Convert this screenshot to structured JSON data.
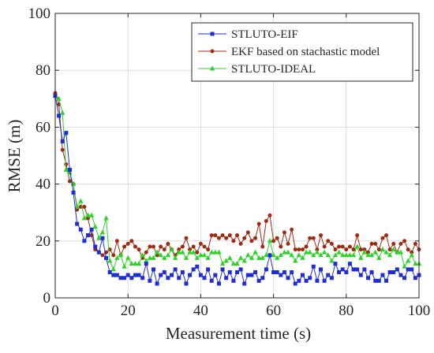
{
  "chart_data": {
    "type": "line",
    "title": "",
    "xlabel": "Measurement time (s)",
    "ylabel": "RMSE (m)",
    "xlim": [
      0,
      100
    ],
    "ylim": [
      0,
      100
    ],
    "xticks": [
      "0",
      "20",
      "40",
      "60",
      "80",
      "100"
    ],
    "yticks": [
      "0",
      "20",
      "40",
      "60",
      "80",
      "100"
    ],
    "grid": true,
    "legend_position": "top-right",
    "series": [
      {
        "name": "STLUTO-EIF",
        "color": "#1f2dd6",
        "marker": "square",
        "x": [
          0,
          1,
          2,
          3,
          4,
          5,
          6,
          7,
          8,
          9,
          10,
          11,
          12,
          13,
          14,
          15,
          16,
          17,
          18,
          19,
          20,
          21,
          22,
          23,
          24,
          25,
          26,
          27,
          28,
          29,
          30,
          31,
          32,
          33,
          34,
          35,
          36,
          37,
          38,
          39,
          40,
          41,
          42,
          43,
          44,
          45,
          46,
          47,
          48,
          49,
          50,
          51,
          52,
          53,
          54,
          55,
          56,
          57,
          58,
          59,
          60,
          61,
          62,
          63,
          64,
          65,
          66,
          67,
          68,
          69,
          70,
          71,
          72,
          73,
          74,
          75,
          76,
          77,
          78,
          79,
          80,
          81,
          82,
          83,
          84,
          85,
          86,
          87,
          88,
          89,
          90,
          91,
          92,
          93,
          94,
          95,
          96,
          97,
          98,
          99,
          100
        ],
        "y": [
          71,
          64,
          55,
          58,
          45,
          37,
          26,
          24,
          20,
          22,
          24,
          18,
          16,
          21,
          14,
          9,
          8,
          8,
          7,
          7,
          8,
          7,
          8,
          8,
          7,
          12,
          6,
          10,
          5,
          8,
          9,
          7,
          8,
          10,
          7,
          9,
          5,
          8,
          10,
          11,
          8,
          7,
          10,
          6,
          8,
          5,
          10,
          7,
          9,
          6,
          9,
          10,
          5,
          8,
          8,
          9,
          6,
          7,
          10,
          15,
          9,
          9,
          8,
          9,
          7,
          9,
          5,
          6,
          8,
          6,
          7,
          11,
          6,
          10,
          6,
          8,
          7,
          12,
          9,
          10,
          9,
          12,
          10,
          10,
          8,
          10,
          7,
          9,
          6,
          6,
          8,
          6,
          9,
          9,
          10,
          8,
          7,
          10,
          10,
          7,
          8
        ]
      },
      {
        "name": "EKF based on stachastic model",
        "color": "#9e2a12",
        "marker": "circle",
        "x": [
          0,
          1,
          2,
          3,
          4,
          5,
          6,
          7,
          8,
          9,
          10,
          11,
          12,
          13,
          14,
          15,
          16,
          17,
          18,
          19,
          20,
          21,
          22,
          23,
          24,
          25,
          26,
          27,
          28,
          29,
          30,
          31,
          32,
          33,
          34,
          35,
          36,
          37,
          38,
          39,
          40,
          41,
          42,
          43,
          44,
          45,
          46,
          47,
          48,
          49,
          50,
          51,
          52,
          53,
          54,
          55,
          56,
          57,
          58,
          59,
          60,
          61,
          62,
          63,
          64,
          65,
          66,
          67,
          68,
          69,
          70,
          71,
          72,
          73,
          74,
          75,
          76,
          77,
          78,
          79,
          80,
          81,
          82,
          83,
          84,
          85,
          86,
          87,
          88,
          89,
          90,
          91,
          92,
          93,
          94,
          95,
          96,
          97,
          98,
          99,
          100
        ],
        "y": [
          72,
          68,
          52,
          47,
          41,
          40,
          31,
          32,
          32,
          28,
          22,
          17,
          16,
          15,
          16,
          17,
          15,
          20,
          15,
          18,
          19,
          20,
          18,
          17,
          14,
          16,
          18,
          18,
          15,
          18,
          17,
          19,
          17,
          15,
          17,
          18,
          21,
          17,
          18,
          16,
          19,
          18,
          17,
          22,
          22,
          21,
          22,
          21,
          22,
          20,
          22,
          19,
          21,
          23,
          20,
          21,
          26,
          18,
          27,
          29,
          20,
          21,
          18,
          23,
          19,
          24,
          17,
          17,
          17,
          18,
          21,
          21,
          17,
          22,
          18,
          20,
          19,
          17,
          18,
          18,
          17,
          18,
          17,
          22,
          17,
          17,
          16,
          19,
          19,
          17,
          21,
          22,
          17,
          19,
          16,
          19,
          20,
          17,
          16,
          19,
          17
        ]
      },
      {
        "name": "STLUTO-IDEAL",
        "color": "#2fd12a",
        "marker": "triangle",
        "x": [
          0,
          1,
          2,
          3,
          4,
          5,
          6,
          7,
          8,
          9,
          10,
          11,
          12,
          13,
          14,
          15,
          16,
          17,
          18,
          19,
          20,
          21,
          22,
          23,
          24,
          25,
          26,
          27,
          28,
          29,
          30,
          31,
          32,
          33,
          34,
          35,
          36,
          37,
          38,
          39,
          40,
          41,
          42,
          43,
          44,
          45,
          46,
          47,
          48,
          49,
          50,
          51,
          52,
          53,
          54,
          55,
          56,
          57,
          58,
          59,
          60,
          61,
          62,
          63,
          64,
          65,
          66,
          67,
          68,
          69,
          70,
          71,
          72,
          73,
          74,
          75,
          76,
          77,
          78,
          79,
          80,
          81,
          82,
          83,
          84,
          85,
          86,
          87,
          88,
          89,
          90,
          91,
          92,
          93,
          94,
          95,
          96,
          97,
          98,
          99,
          100
        ],
        "y": [
          71,
          70,
          65,
          45,
          44,
          40,
          32,
          34,
          28,
          29,
          29,
          25,
          21,
          23,
          28,
          13,
          10,
          14,
          15,
          11,
          14,
          12,
          12,
          12,
          15,
          13,
          14,
          14,
          16,
          15,
          14,
          15,
          17,
          14,
          16,
          16,
          14,
          16,
          16,
          14,
          15,
          15,
          14,
          16,
          16,
          16,
          12,
          13,
          14,
          12,
          12,
          14,
          13,
          15,
          14,
          16,
          14,
          14,
          15,
          20,
          15,
          14,
          15,
          16,
          16,
          15,
          13,
          15,
          14,
          16,
          16,
          15,
          16,
          15,
          16,
          15,
          13,
          15,
          16,
          15,
          15,
          15,
          15,
          18,
          14,
          16,
          15,
          15,
          16,
          14,
          17,
          16,
          15,
          17,
          16,
          16,
          11,
          13,
          15,
          12,
          12
        ]
      }
    ]
  }
}
